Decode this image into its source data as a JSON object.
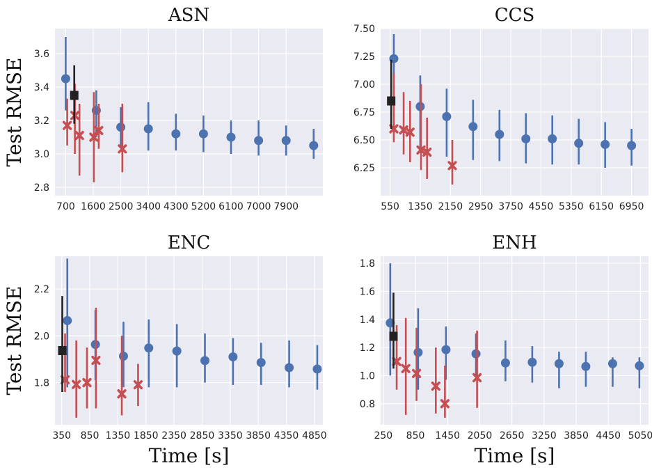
{
  "chart_data": [
    {
      "type": "scatter",
      "title": "ASN",
      "ylabel": "Test RMSE",
      "xlabel": "",
      "xlim": [
        350,
        9100
      ],
      "ylim": [
        2.75,
        3.75
      ],
      "xticks": [
        700,
        1600,
        2500,
        3400,
        4300,
        5200,
        6100,
        7000,
        7900
      ],
      "yticks": [
        2.8,
        3.0,
        3.2,
        3.4,
        3.6
      ],
      "ytick_labels": [
        "2.8",
        "3.0",
        "3.2",
        "3.4",
        "3.6"
      ],
      "series": [
        {
          "marker": "circle",
          "color": "#4c72b0",
          "points": [
            {
              "x": 700,
              "y": 3.45,
              "lo": 3.26,
              "hi": 3.7
            },
            {
              "x": 1700,
              "y": 3.26,
              "lo": 3.1,
              "hi": 3.38
            },
            {
              "x": 2500,
              "y": 3.16,
              "lo": 3.04,
              "hi": 3.28
            },
            {
              "x": 3400,
              "y": 3.15,
              "lo": 3.02,
              "hi": 3.31
            },
            {
              "x": 4300,
              "y": 3.12,
              "lo": 3.02,
              "hi": 3.24
            },
            {
              "x": 5200,
              "y": 3.12,
              "lo": 3.01,
              "hi": 3.23
            },
            {
              "x": 6100,
              "y": 3.1,
              "lo": 3.0,
              "hi": 3.2
            },
            {
              "x": 7000,
              "y": 3.08,
              "lo": 2.99,
              "hi": 3.2
            },
            {
              "x": 7900,
              "y": 3.08,
              "lo": 2.99,
              "hi": 3.17
            },
            {
              "x": 8800,
              "y": 3.05,
              "lo": 2.97,
              "hi": 3.15
            }
          ]
        },
        {
          "marker": "x",
          "color": "#c44e52",
          "points": [
            {
              "x": 750,
              "y": 3.17,
              "lo": 3.05,
              "hi": 3.33
            },
            {
              "x": 1000,
              "y": 3.23,
              "lo": 3.0,
              "hi": 3.42
            },
            {
              "x": 1150,
              "y": 3.11,
              "lo": 2.87,
              "hi": 3.3
            },
            {
              "x": 1620,
              "y": 3.1,
              "lo": 2.83,
              "hi": 3.37
            },
            {
              "x": 1780,
              "y": 3.14,
              "lo": 3.03,
              "hi": 3.3
            },
            {
              "x": 2550,
              "y": 3.03,
              "lo": 2.89,
              "hi": 3.3
            }
          ]
        },
        {
          "marker": "square",
          "color": "#222222",
          "points": [
            {
              "x": 980,
              "y": 3.35,
              "lo": 3.18,
              "hi": 3.53
            }
          ]
        }
      ]
    },
    {
      "type": "scatter",
      "title": "CCS",
      "ylabel": "",
      "xlabel": "",
      "xlim": [
        300,
        7400
      ],
      "ylim": [
        6.0,
        7.5
      ],
      "xticks": [
        550,
        1350,
        2150,
        2950,
        3750,
        4550,
        5350,
        6150,
        6950
      ],
      "yticks": [
        6.25,
        6.5,
        6.75,
        7.0,
        7.25,
        7.5
      ],
      "ytick_labels": [
        "6.25",
        "6.50",
        "6.75",
        "7.00",
        "7.25",
        "7.50"
      ],
      "series": [
        {
          "marker": "circle",
          "color": "#4c72b0",
          "points": [
            {
              "x": 650,
              "y": 7.23,
              "lo": 6.9,
              "hi": 7.45
            },
            {
              "x": 1350,
              "y": 6.8,
              "lo": 6.42,
              "hi": 7.08
            },
            {
              "x": 2050,
              "y": 6.71,
              "lo": 6.35,
              "hi": 6.96
            },
            {
              "x": 2750,
              "y": 6.62,
              "lo": 6.32,
              "hi": 6.86
            },
            {
              "x": 3450,
              "y": 6.55,
              "lo": 6.31,
              "hi": 6.77
            },
            {
              "x": 4150,
              "y": 6.51,
              "lo": 6.29,
              "hi": 6.74
            },
            {
              "x": 4850,
              "y": 6.51,
              "lo": 6.28,
              "hi": 6.72
            },
            {
              "x": 5550,
              "y": 6.47,
              "lo": 6.28,
              "hi": 6.69
            },
            {
              "x": 6250,
              "y": 6.46,
              "lo": 6.25,
              "hi": 6.66
            },
            {
              "x": 6950,
              "y": 6.45,
              "lo": 6.27,
              "hi": 6.6
            }
          ]
        },
        {
          "marker": "x",
          "color": "#c44e52",
          "points": [
            {
              "x": 650,
              "y": 6.6,
              "lo": 6.48,
              "hi": 7.1
            },
            {
              "x": 910,
              "y": 6.59,
              "lo": 6.37,
              "hi": 6.93
            },
            {
              "x": 1080,
              "y": 6.57,
              "lo": 6.3,
              "hi": 6.85
            },
            {
              "x": 1370,
              "y": 6.41,
              "lo": 6.23,
              "hi": 7.0
            },
            {
              "x": 1530,
              "y": 6.39,
              "lo": 6.15,
              "hi": 6.7
            },
            {
              "x": 2200,
              "y": 6.27,
              "lo": 6.1,
              "hi": 6.5
            }
          ]
        },
        {
          "marker": "square",
          "color": "#222222",
          "points": [
            {
              "x": 580,
              "y": 6.85,
              "lo": 6.6,
              "hi": 7.22
            }
          ]
        }
      ]
    },
    {
      "type": "scatter",
      "title": "ENC",
      "ylabel": "Test RMSE",
      "xlabel": "Time [s]",
      "xlim": [
        230,
        5000
      ],
      "ylim": [
        1.62,
        2.34
      ],
      "xticks": [
        350,
        850,
        1350,
        1850,
        2350,
        2850,
        3350,
        3850,
        4350,
        4850
      ],
      "yticks": [
        1.8,
        2.0,
        2.2
      ],
      "ytick_labels": [
        "1.8",
        "2.0",
        "2.2"
      ],
      "series": [
        {
          "marker": "circle",
          "color": "#4c72b0",
          "points": [
            {
              "x": 450,
              "y": 2.065,
              "lo": 1.78,
              "hi": 2.33
            },
            {
              "x": 950,
              "y": 1.963,
              "lo": 1.81,
              "hi": 2.11
            },
            {
              "x": 1450,
              "y": 1.913,
              "lo": 1.78,
              "hi": 2.06
            },
            {
              "x": 1900,
              "y": 1.948,
              "lo": 1.78,
              "hi": 2.07
            },
            {
              "x": 2400,
              "y": 1.935,
              "lo": 1.78,
              "hi": 2.05
            },
            {
              "x": 2900,
              "y": 1.894,
              "lo": 1.8,
              "hi": 2.01
            },
            {
              "x": 3400,
              "y": 1.91,
              "lo": 1.79,
              "hi": 1.99
            },
            {
              "x": 3900,
              "y": 1.886,
              "lo": 1.79,
              "hi": 1.97
            },
            {
              "x": 4400,
              "y": 1.864,
              "lo": 1.78,
              "hi": 1.98
            },
            {
              "x": 4900,
              "y": 1.858,
              "lo": 1.77,
              "hi": 1.96
            }
          ]
        },
        {
          "marker": "x",
          "color": "#c44e52",
          "points": [
            {
              "x": 410,
              "y": 1.812,
              "lo": 1.76,
              "hi": 2.01
            },
            {
              "x": 610,
              "y": 1.792,
              "lo": 1.65,
              "hi": 1.98
            },
            {
              "x": 800,
              "y": 1.8,
              "lo": 1.69,
              "hi": 1.95
            },
            {
              "x": 960,
              "y": 1.895,
              "lo": 1.69,
              "hi": 2.12
            },
            {
              "x": 1420,
              "y": 1.752,
              "lo": 1.66,
              "hi": 2.0
            },
            {
              "x": 1710,
              "y": 1.791,
              "lo": 1.7,
              "hi": 1.88
            }
          ]
        },
        {
          "marker": "square",
          "color": "#222222",
          "points": [
            {
              "x": 360,
              "y": 1.937,
              "lo": 1.76,
              "hi": 2.17
            }
          ]
        }
      ]
    },
    {
      "type": "scatter",
      "title": "ENH",
      "ylabel": "",
      "xlabel": "Time [s]",
      "xlim": [
        200,
        5200
      ],
      "ylim": [
        0.65,
        1.85
      ],
      "xticks": [
        250,
        850,
        1450,
        2050,
        2650,
        3250,
        3850,
        4450,
        5050
      ],
      "yticks": [
        0.8,
        1.0,
        1.2,
        1.4,
        1.6,
        1.8
      ],
      "ytick_labels": [
        "0.8",
        "1.0",
        "1.2",
        "1.4",
        "1.6",
        "1.8"
      ],
      "series": [
        {
          "marker": "circle",
          "color": "#4c72b0",
          "points": [
            {
              "x": 380,
              "y": 1.375,
              "lo": 1.0,
              "hi": 1.8
            },
            {
              "x": 900,
              "y": 1.165,
              "lo": 0.9,
              "hi": 1.48
            },
            {
              "x": 1420,
              "y": 1.185,
              "lo": 0.97,
              "hi": 1.35
            },
            {
              "x": 1980,
              "y": 1.155,
              "lo": 0.99,
              "hi": 1.3
            },
            {
              "x": 2530,
              "y": 1.09,
              "lo": 0.96,
              "hi": 1.25
            },
            {
              "x": 3030,
              "y": 1.095,
              "lo": 0.95,
              "hi": 1.21
            },
            {
              "x": 3530,
              "y": 1.085,
              "lo": 0.91,
              "hi": 1.17
            },
            {
              "x": 4030,
              "y": 1.065,
              "lo": 0.92,
              "hi": 1.17
            },
            {
              "x": 4530,
              "y": 1.085,
              "lo": 0.92,
              "hi": 1.13
            },
            {
              "x": 5030,
              "y": 1.07,
              "lo": 0.91,
              "hi": 1.13
            }
          ]
        },
        {
          "marker": "x",
          "color": "#c44e52",
          "points": [
            {
              "x": 500,
              "y": 1.1,
              "lo": 0.9,
              "hi": 1.36
            },
            {
              "x": 670,
              "y": 1.05,
              "lo": 0.72,
              "hi": 1.41
            },
            {
              "x": 870,
              "y": 1.015,
              "lo": 0.82,
              "hi": 1.34
            },
            {
              "x": 1230,
              "y": 0.925,
              "lo": 0.73,
              "hi": 1.2
            },
            {
              "x": 1400,
              "y": 0.8,
              "lo": 0.7,
              "hi": 1.07
            },
            {
              "x": 2000,
              "y": 0.985,
              "lo": 0.77,
              "hi": 1.32
            }
          ]
        },
        {
          "marker": "square",
          "color": "#222222",
          "points": [
            {
              "x": 440,
              "y": 1.28,
              "lo": 1.05,
              "hi": 1.59
            }
          ]
        }
      ]
    }
  ]
}
